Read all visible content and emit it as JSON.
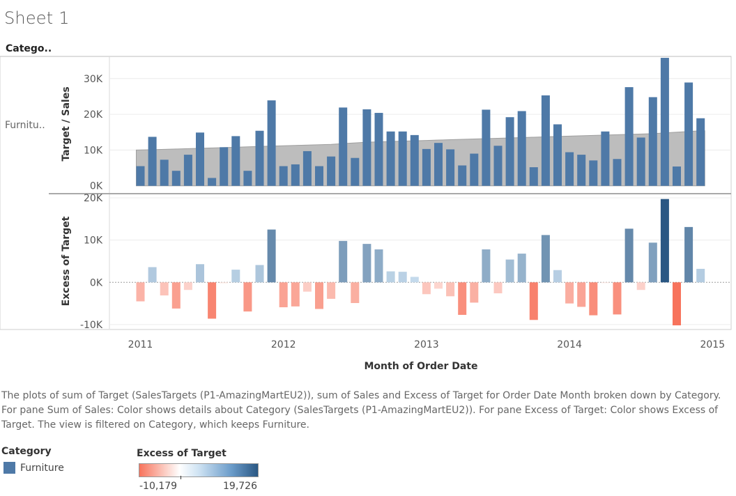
{
  "sheet_title": "Sheet 1",
  "category_header": "Catego..",
  "row_label": "Furnitu..",
  "x_axis_title": "Month of Order Date",
  "caption": "The plots of sum of Target (SalesTargets (P1-AmazingMartEU2)), sum of Sales and Excess of Target for Order Date Month broken down by Category.  For pane Sum of Sales:  Color shows details about Category (SalesTargets (P1-AmazingMartEU2)).  For pane Excess of Target:  Color shows Excess of Target. The view is filtered on Category, which keeps Furniture.",
  "legend_category": {
    "title": "Category",
    "items": [
      {
        "label": "Furniture",
        "color": "#4e79a7"
      }
    ]
  },
  "legend_excess": {
    "title": "Excess of Target",
    "min_label": "-10,179",
    "max_label": "19,726",
    "colors": {
      "negative": "#f7735c",
      "zero": "#ffffff",
      "positive": "#2a5783"
    }
  },
  "chart_data": [
    {
      "type": "bar",
      "pane": "top",
      "ylabel": "Target / Sales",
      "ylim": [
        -2000,
        36000
      ],
      "y_ticks": [
        0,
        10000,
        20000,
        30000
      ],
      "y_tick_labels": [
        "0K",
        "10K",
        "20K",
        "30K"
      ],
      "x_ticks": [
        "2011",
        "2012",
        "2013",
        "2014",
        "2015"
      ],
      "months": [
        "2011-01",
        "2011-02",
        "2011-03",
        "2011-04",
        "2011-05",
        "2011-06",
        "2011-07",
        "2011-08",
        "2011-09",
        "2011-10",
        "2011-11",
        "2011-12",
        "2012-01",
        "2012-02",
        "2012-03",
        "2012-04",
        "2012-05",
        "2012-06",
        "2012-07",
        "2012-08",
        "2012-09",
        "2012-10",
        "2012-11",
        "2012-12",
        "2013-01",
        "2013-02",
        "2013-03",
        "2013-04",
        "2013-05",
        "2013-06",
        "2013-07",
        "2013-08",
        "2013-09",
        "2013-10",
        "2013-11",
        "2013-12",
        "2014-01",
        "2014-02",
        "2014-03",
        "2014-04",
        "2014-05",
        "2014-06",
        "2014-07",
        "2014-08",
        "2014-09",
        "2014-10",
        "2014-11",
        "2014-12"
      ],
      "series": [
        {
          "name": "Sales",
          "color": "#4e79a7",
          "mark": "bar",
          "values": [
            5500,
            13700,
            7300,
            4200,
            8700,
            14900,
            2200,
            10800,
            13900,
            4200,
            15400,
            23900,
            5500,
            6000,
            9700,
            5500,
            8200,
            21900,
            7800,
            21400,
            20400,
            15200,
            15200,
            14200,
            10300,
            12000,
            10200,
            5700,
            9000,
            21300,
            11200,
            19200,
            20900,
            5200,
            25300,
            17200,
            9400,
            8700,
            7100,
            15200,
            7500,
            27600,
            13500,
            24800,
            35800,
            5400,
            28900,
            18900
          ]
        },
        {
          "name": "Target",
          "color": "#bdbdbd",
          "mark": "area",
          "values": [
            10000,
            10100,
            10200,
            10300,
            10400,
            10500,
            10600,
            10700,
            10800,
            10900,
            11000,
            11100,
            11200,
            11300,
            11400,
            11500,
            11600,
            11800,
            12000,
            12200,
            12300,
            12400,
            12500,
            12600,
            12700,
            12800,
            12900,
            13000,
            13100,
            13200,
            13300,
            13400,
            13500,
            13600,
            13700,
            13800,
            13900,
            14000,
            14100,
            14200,
            14300,
            14400,
            14500,
            14600,
            14800,
            15000,
            15200,
            15400
          ]
        }
      ]
    },
    {
      "type": "bar",
      "pane": "bottom",
      "ylabel": "Excess of Target",
      "ylim": [
        -11000,
        20500
      ],
      "y_ticks": [
        -10000,
        0,
        10000,
        20000
      ],
      "y_tick_labels": [
        "-10K",
        "0K",
        "10K",
        "20K"
      ],
      "series": [
        {
          "name": "Excess of Target",
          "values": [
            -4500,
            3600,
            -3100,
            -6200,
            -1800,
            4300,
            -8600,
            -200,
            3000,
            -6900,
            4100,
            12500,
            -5900,
            -5700,
            -2200,
            -6300,
            -3900,
            9800,
            -4900,
            9100,
            7800,
            2600,
            2500,
            1300,
            -2800,
            -1500,
            -3300,
            -7700,
            -4800,
            7800,
            -2600,
            5400,
            6800,
            -8900,
            11200,
            2900,
            -5000,
            -5800,
            -7800,
            -100,
            -7600,
            12700,
            -1800,
            9400,
            19726,
            -10179,
            13100,
            3200
          ]
        }
      ]
    }
  ]
}
